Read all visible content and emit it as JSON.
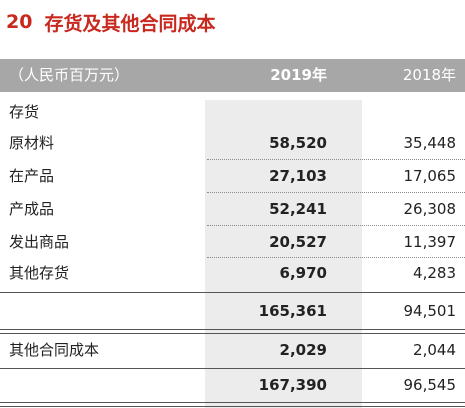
{
  "title": {
    "number": "20",
    "text": "存货及其他合同成本"
  },
  "header": {
    "unit": "（人民币百万元）",
    "col1": "2019年",
    "col2": "2018年"
  },
  "section_label": "存货",
  "rows": [
    {
      "label": "原材料",
      "v2019": "58,520",
      "v2018": "35,448"
    },
    {
      "label": "在产品",
      "v2019": "27,103",
      "v2018": "17,065"
    },
    {
      "label": "产成品",
      "v2019": "52,241",
      "v2018": "26,308"
    },
    {
      "label": "发出商品",
      "v2019": "20,527",
      "v2018": "11,397"
    },
    {
      "label": "其他存货",
      "v2019": "6,970",
      "v2018": "4,283"
    }
  ],
  "subtotal": {
    "v2019": "165,361",
    "v2018": "94,501"
  },
  "other": {
    "label": "其他合同成本",
    "v2019": "2,029",
    "v2018": "2,044"
  },
  "total": {
    "v2019": "167,390",
    "v2018": "96,545"
  }
}
